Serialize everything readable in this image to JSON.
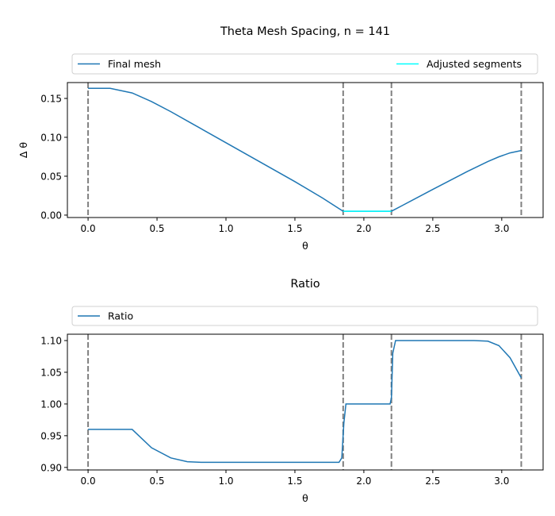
{
  "chart_data": [
    {
      "type": "line",
      "title": "Theta Mesh Spacing, n = 141",
      "xlabel": "θ",
      "ylabel": "Δ θ",
      "xlim": [
        -0.15,
        3.3
      ],
      "ylim": [
        -0.0031,
        0.1704
      ],
      "xticks": [
        0.0,
        0.5,
        1.0,
        1.5,
        2.0,
        2.5,
        3.0
      ],
      "xtick_labels": [
        "0.0",
        "0.5",
        "1.0",
        "1.5",
        "2.0",
        "2.5",
        "3.0"
      ],
      "yticks": [
        0.0,
        0.05,
        0.1,
        0.15
      ],
      "ytick_labels": [
        "0.00",
        "0.05",
        "0.10",
        "0.15"
      ],
      "legend": [
        "Final mesh",
        "Adjusted segments"
      ],
      "legend_placement": "top (above axes, expanded)",
      "vlines": [
        0.0,
        1.85,
        2.2,
        3.1416
      ],
      "series": [
        {
          "name": "Final mesh",
          "color": "#1f77b4",
          "x": [
            0,
            0.16,
            0.32,
            0.46,
            0.6,
            0.75,
            1.0,
            1.25,
            1.5,
            1.7,
            1.85,
            2.2,
            2.5,
            2.75,
            2.9,
            2.98,
            3.06,
            3.1416
          ],
          "y": [
            0.163,
            0.163,
            0.157,
            0.146,
            0.133,
            0.118,
            0.093,
            0.068,
            0.043,
            0.022,
            0.005,
            0.005,
            0.033,
            0.056,
            0.069,
            0.075,
            0.08,
            0.083
          ]
        },
        {
          "name": "Adjusted segments",
          "color": "#00ffff",
          "x": [
            1.85,
            2.2
          ],
          "y": [
            0.005,
            0.005
          ]
        }
      ]
    },
    {
      "type": "line",
      "title": "Ratio",
      "xlabel": "θ",
      "ylabel": "",
      "xlim": [
        -0.15,
        3.3
      ],
      "ylim": [
        0.896,
        1.11
      ],
      "xticks": [
        0.0,
        0.5,
        1.0,
        1.5,
        2.0,
        2.5,
        3.0
      ],
      "xtick_labels": [
        "0.0",
        "0.5",
        "1.0",
        "1.5",
        "2.0",
        "2.5",
        "3.0"
      ],
      "yticks": [
        0.9,
        0.95,
        1.0,
        1.05,
        1.1
      ],
      "ytick_labels": [
        "0.90",
        "0.95",
        "1.00",
        "1.05",
        "1.10"
      ],
      "legend": [
        "Ratio"
      ],
      "legend_placement": "top (above axes, expanded)",
      "vlines": [
        0.0,
        1.85,
        2.2,
        3.1416
      ],
      "series": [
        {
          "name": "Ratio",
          "color": "#1f77b4",
          "x": [
            0,
            0.32,
            0.46,
            0.6,
            0.72,
            0.82,
            1.2,
            1.82,
            1.84,
            1.855,
            1.87,
            2.19,
            2.2,
            2.21,
            2.23,
            2.8,
            2.9,
            2.98,
            3.06,
            3.1416
          ],
          "y": [
            0.96,
            0.96,
            0.931,
            0.915,
            0.909,
            0.908,
            0.908,
            0.908,
            0.915,
            0.97,
            1.0,
            1.0,
            1.01,
            1.08,
            1.1,
            1.1,
            1.099,
            1.092,
            1.073,
            1.041
          ]
        }
      ]
    }
  ]
}
